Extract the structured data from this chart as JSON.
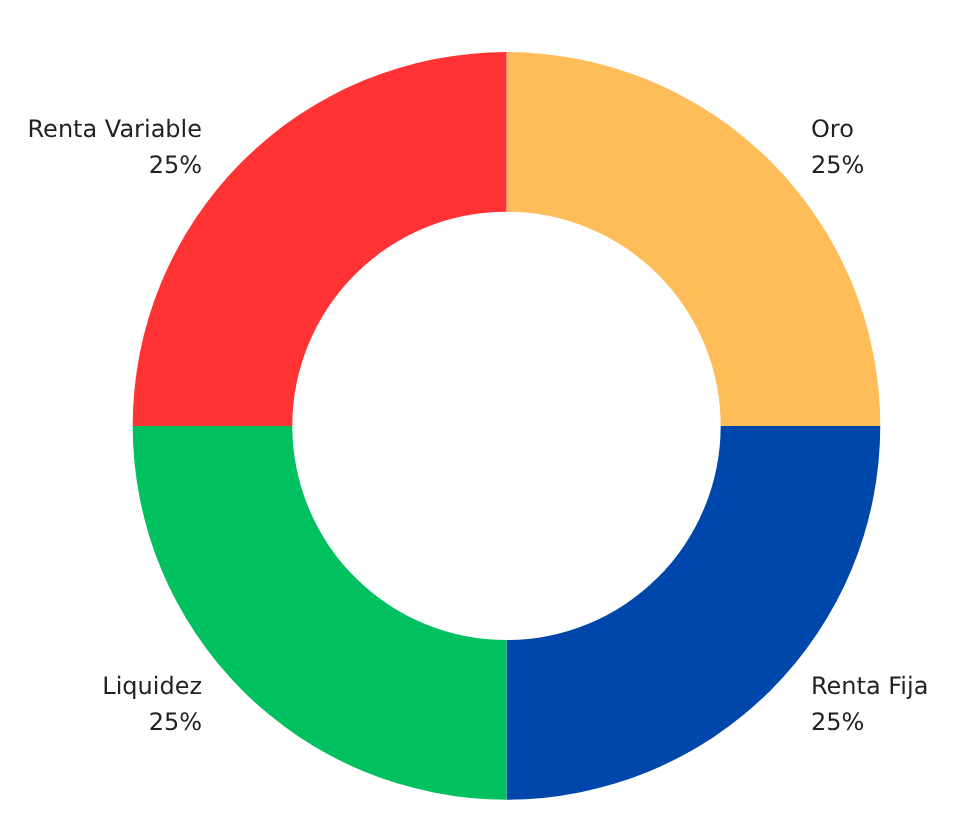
{
  "chart_data": {
    "type": "donut",
    "categories": [
      "Oro",
      "Renta Fija",
      "Liquidez",
      "Renta Variable"
    ],
    "values": [
      25,
      25,
      25,
      25
    ],
    "value_labels": [
      "25%",
      "25%",
      "25%",
      "25%"
    ],
    "colors": [
      "#ffbd59",
      "#0047ab",
      "#00c060",
      "#ff3333"
    ],
    "legend": false
  }
}
